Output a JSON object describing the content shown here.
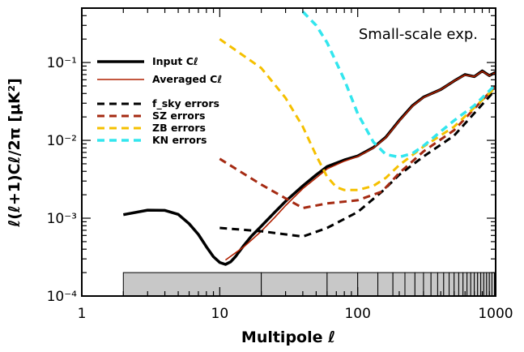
{
  "chart_data": {
    "type": "line",
    "title": "",
    "annotation": "Small-scale exp.",
    "xlabel": "Multipole ℓ",
    "ylabel": "ℓ(ℓ+1)Cℓ/2π [μK²]",
    "x_scale": "log",
    "y_scale": "log",
    "xlim": [
      1,
      1000
    ],
    "ylim": [
      0.0001,
      0.5
    ],
    "x_ticks": [
      1,
      10,
      100,
      1000
    ],
    "x_tick_labels": [
      "1",
      "10",
      "100",
      "1000"
    ],
    "y_ticks": [
      0.0001,
      0.001,
      0.01,
      0.1
    ],
    "y_tick_labels": [
      "10⁻⁴",
      "10⁻³",
      "10⁻²",
      "10⁻¹"
    ],
    "legend_position": "upper-left",
    "series": [
      {
        "name": "Input Cℓ",
        "color": "#000000",
        "dash": "solid",
        "width": 3.5,
        "x": [
          2,
          3,
          4,
          5,
          6,
          7,
          8,
          9,
          10,
          11,
          12,
          13,
          15,
          17,
          20,
          25,
          30,
          40,
          50,
          60,
          80,
          100,
          130,
          160,
          200,
          250,
          300,
          400,
          500,
          600,
          700,
          800,
          900,
          1000
        ],
        "y": [
          0.00111,
          0.00127,
          0.00126,
          0.00112,
          0.00085,
          0.00062,
          0.00043,
          0.00032,
          0.00027,
          0.000255,
          0.000275,
          0.00032,
          0.00045,
          0.00059,
          0.00079,
          0.00119,
          0.00165,
          0.0026,
          0.0036,
          0.0046,
          0.0056,
          0.0063,
          0.0081,
          0.011,
          0.018,
          0.028,
          0.036,
          0.045,
          0.058,
          0.07,
          0.066,
          0.078,
          0.068,
          0.075
        ]
      },
      {
        "name": "Averaged Cℓ",
        "color": "#b02000",
        "dash": "solid",
        "width": 1.6,
        "x": [
          11,
          15,
          20,
          25,
          30,
          40,
          50,
          60,
          80,
          100,
          130,
          160,
          200,
          250,
          300,
          400,
          500,
          600,
          700,
          800,
          900,
          1000
        ],
        "y": [
          0.00029,
          0.00043,
          0.00068,
          0.00102,
          0.00145,
          0.0024,
          0.0033,
          0.0043,
          0.0054,
          0.0062,
          0.008,
          0.0108,
          0.0177,
          0.0277,
          0.0355,
          0.045,
          0.058,
          0.069,
          0.066,
          0.077,
          0.068,
          0.074
        ]
      },
      {
        "name": "f_sky errors",
        "color": "#000000",
        "dash": "dashed",
        "width": 3,
        "x": [
          10,
          20,
          40,
          60,
          100,
          150,
          200,
          300,
          500,
          1000
        ],
        "y": [
          0.00075,
          0.00068,
          0.00058,
          0.00075,
          0.0012,
          0.0022,
          0.0036,
          0.0062,
          0.0115,
          0.045
        ]
      },
      {
        "name": "SZ errors",
        "color": "#a52a12",
        "dash": "dashed",
        "width": 3,
        "x": [
          10,
          20,
          40,
          60,
          100,
          150,
          200,
          300,
          500,
          1000
        ],
        "y": [
          0.0058,
          0.0027,
          0.00135,
          0.00155,
          0.0017,
          0.0022,
          0.0038,
          0.0072,
          0.0135,
          0.05
        ]
      },
      {
        "name": "ZB errors",
        "color": "#f5c000",
        "dash": "dashed",
        "width": 3,
        "x": [
          10,
          20,
          30,
          40,
          50,
          60,
          70,
          80,
          100,
          130,
          160,
          200,
          300,
          500,
          1000
        ],
        "y": [
          0.2,
          0.085,
          0.035,
          0.015,
          0.0064,
          0.0034,
          0.0025,
          0.0023,
          0.0023,
          0.0026,
          0.0033,
          0.0048,
          0.0083,
          0.015,
          0.048
        ]
      },
      {
        "name": "KN errors",
        "color": "#33e6ee",
        "dash": "dashed",
        "width": 3.5,
        "x": [
          40,
          50,
          60,
          80,
          100,
          130,
          160,
          200,
          250,
          300,
          400,
          500,
          700,
          1000
        ],
        "y": [
          0.45,
          0.3,
          0.18,
          0.06,
          0.022,
          0.0095,
          0.0066,
          0.0061,
          0.0068,
          0.0085,
          0.013,
          0.018,
          0.028,
          0.052
        ]
      }
    ],
    "bin_edges": [
      2,
      20,
      60,
      100,
      140,
      180,
      220,
      260,
      300,
      340,
      380,
      420,
      460,
      500,
      540,
      580,
      620,
      660,
      700,
      740,
      780,
      820,
      860,
      900,
      940,
      980,
      1000
    ],
    "bin_band_ylim": [
      0.0001,
      0.0002
    ],
    "bin_band_fill": "#c8c8c8"
  }
}
